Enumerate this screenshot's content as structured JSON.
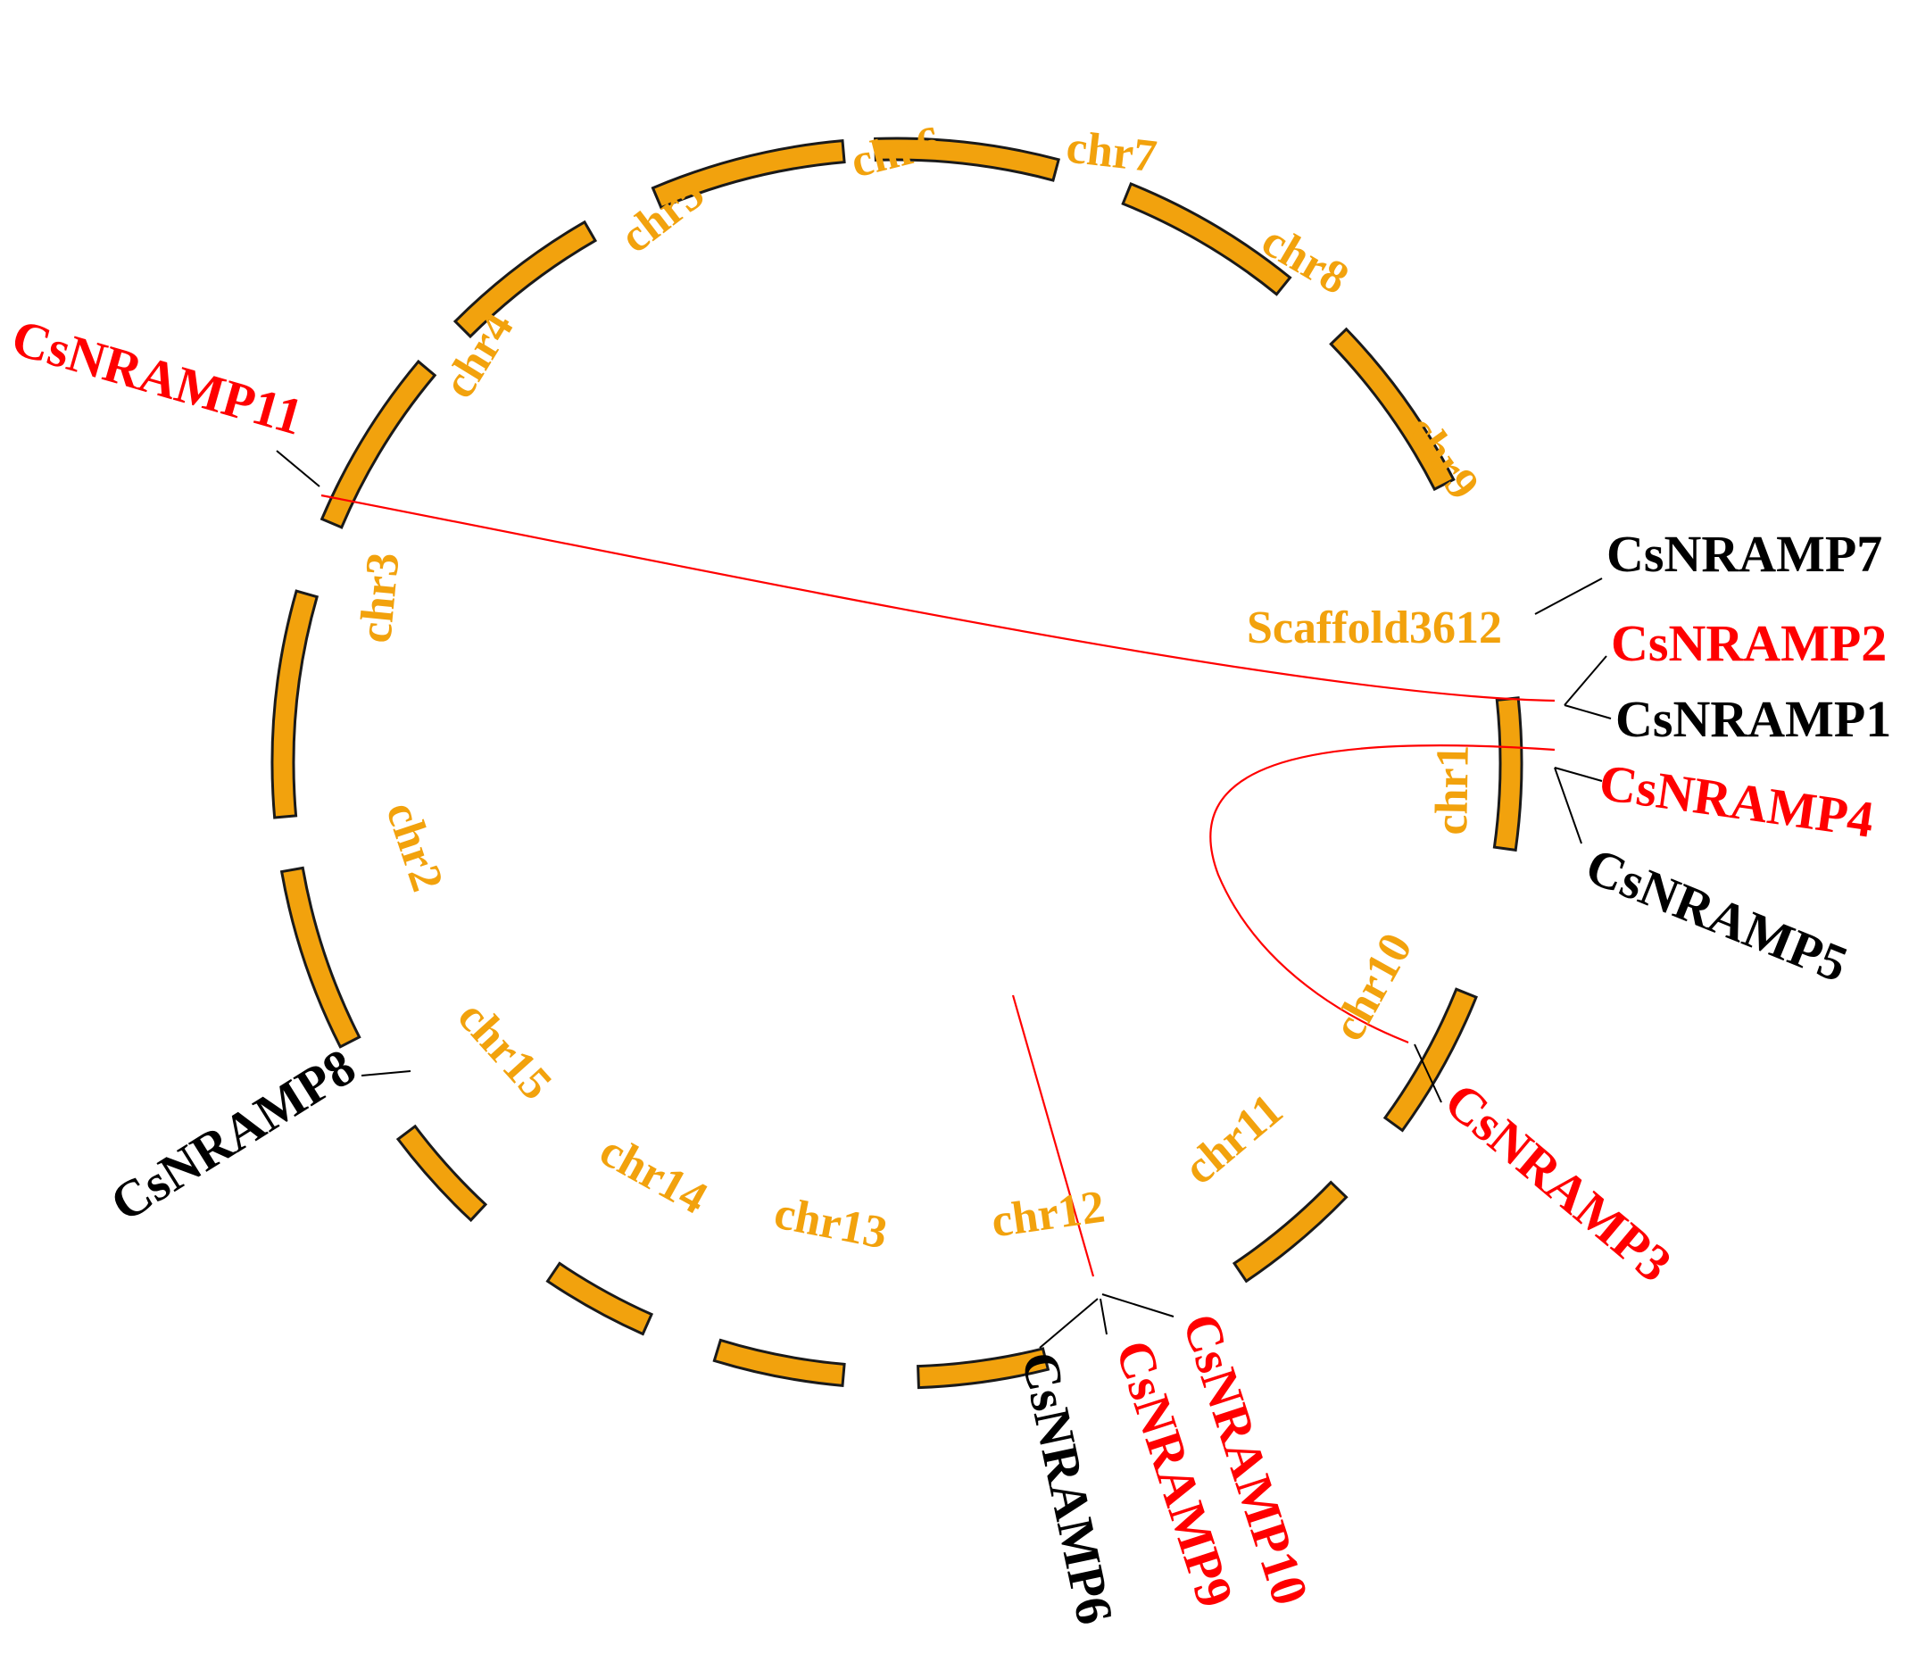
{
  "chromosomes": [
    {
      "id": "chr1",
      "label": "chr1"
    },
    {
      "id": "chr2",
      "label": "chr2"
    },
    {
      "id": "chr3",
      "label": "chr3"
    },
    {
      "id": "chr4",
      "label": "chr4"
    },
    {
      "id": "chr5",
      "label": "chr5"
    },
    {
      "id": "chr6",
      "label": "chr6"
    },
    {
      "id": "chr7",
      "label": "chr7"
    },
    {
      "id": "chr8",
      "label": "chr8"
    },
    {
      "id": "chr9",
      "label": "chr9"
    },
    {
      "id": "chr10",
      "label": "chr10"
    },
    {
      "id": "chr11",
      "label": "chr11"
    },
    {
      "id": "chr12",
      "label": "chr12"
    },
    {
      "id": "chr13",
      "label": "chr13"
    },
    {
      "id": "chr14",
      "label": "chr14"
    },
    {
      "id": "chr15",
      "label": "chr15"
    },
    {
      "id": "scaffold3612",
      "label": "Scaffold3612"
    }
  ],
  "genes": [
    {
      "name": "CsNRAMP1",
      "chromosome": "chr1",
      "color": "#000000"
    },
    {
      "name": "CsNRAMP2",
      "chromosome": "chr1",
      "color": "#ff0000"
    },
    {
      "name": "CsNRAMP3",
      "chromosome": "chr10",
      "color": "#ff0000"
    },
    {
      "name": "CsNRAMP4",
      "chromosome": "chr1",
      "color": "#ff0000"
    },
    {
      "name": "CsNRAMP5",
      "chromosome": "chr1",
      "color": "#000000"
    },
    {
      "name": "CsNRAMP6",
      "chromosome": "chr12",
      "color": "#000000"
    },
    {
      "name": "CsNRAMP7",
      "chromosome": "Scaffold3612",
      "color": "#000000"
    },
    {
      "name": "CsNRAMP8",
      "chromosome": "chr15",
      "color": "#000000"
    },
    {
      "name": "CsNRAMP9",
      "chromosome": "chr12",
      "color": "#ff0000"
    },
    {
      "name": "CsNRAMP10",
      "chromosome": "chr12",
      "color": "#ff0000"
    },
    {
      "name": "CsNRAMP11",
      "chromosome": "chr3",
      "color": "#ff0000"
    }
  ],
  "duplication_links": [
    {
      "from": "CsNRAMP11",
      "to": "CsNRAMP2"
    },
    {
      "from": "CsNRAMP4",
      "to": "CsNRAMP3"
    },
    {
      "from": "CsNRAMP9",
      "to": "CsNRAMP10"
    }
  ],
  "colors": {
    "chromosome_fill": "#f2a20d",
    "chromosome_stroke": "#1a1a1a",
    "duplicated_gene": "#ff0000",
    "other_gene": "#000000",
    "link": "#ff0000"
  }
}
